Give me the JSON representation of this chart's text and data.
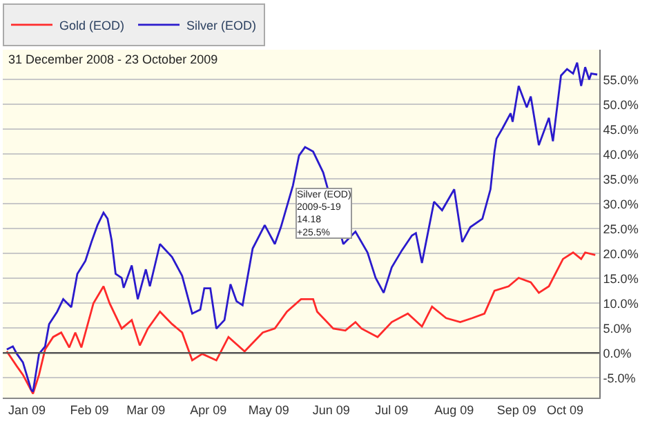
{
  "chart_data": {
    "type": "line",
    "title": "31 December 2008 - 23 October 2009",
    "annotations": [
      "Silver (EOD)\n2009-5-19\n14.18\n+25.5%"
    ],
    "series": [
      {
        "name": "Gold (EOD)",
        "color": "#ff2a2a",
        "x": [
          "2009-01-02",
          "2009-01-07",
          "2009-01-10",
          "2009-01-15",
          "2009-01-18",
          "2009-01-21",
          "2009-01-25",
          "2009-01-29",
          "2009-02-02",
          "2009-02-05",
          "2009-02-08",
          "2009-02-14",
          "2009-02-19",
          "2009-02-22",
          "2009-02-28",
          "2009-03-05",
          "2009-03-09",
          "2009-03-13",
          "2009-03-19",
          "2009-03-25",
          "2009-03-30",
          "2009-04-04",
          "2009-04-09",
          "2009-04-16",
          "2009-04-22",
          "2009-04-30",
          "2009-05-09",
          "2009-05-15",
          "2009-05-21",
          "2009-05-28",
          "2009-06-03",
          "2009-06-05",
          "2009-06-13",
          "2009-06-19",
          "2009-06-24",
          "2009-06-27",
          "2009-07-05",
          "2009-07-12",
          "2009-07-20",
          "2009-07-27",
          "2009-08-01",
          "2009-08-08",
          "2009-08-15",
          "2009-08-21",
          "2009-08-27",
          "2009-09-01",
          "2009-09-08",
          "2009-09-13",
          "2009-09-19",
          "2009-09-23",
          "2009-09-28",
          "2009-10-05",
          "2009-10-10",
          "2009-10-14",
          "2009-10-16",
          "2009-10-21"
        ],
        "values": [
          0.3,
          -2.7,
          -4.4,
          -8.2,
          -4.4,
          0.7,
          3.2,
          4.1,
          1.1,
          4.1,
          1.1,
          10.0,
          13.4,
          10.0,
          4.9,
          6.6,
          1.5,
          4.9,
          8.3,
          5.8,
          4.1,
          -1.5,
          -0.2,
          -1.5,
          3.2,
          0.3,
          4.1,
          4.9,
          8.3,
          10.8,
          10.8,
          8.3,
          4.9,
          4.5,
          6.2,
          4.9,
          3.2,
          6.2,
          7.9,
          5.3,
          9.3,
          7.0,
          6.2,
          7.0,
          7.9,
          12.5,
          13.4,
          15.1,
          14.2,
          12.1,
          13.4,
          18.9,
          20.2,
          18.9,
          20.2,
          19.7
        ]
      },
      {
        "name": "Silver (EOD)",
        "color": "#2a1acc",
        "x": [
          "2009-01-02",
          "2009-01-05",
          "2009-01-07",
          "2009-01-10",
          "2009-01-14",
          "2009-01-15",
          "2009-01-18",
          "2009-01-21",
          "2009-01-23",
          "2009-01-27",
          "2009-01-30",
          "2009-02-03",
          "2009-02-06",
          "2009-02-10",
          "2009-02-13",
          "2009-02-16",
          "2009-02-19",
          "2009-02-21",
          "2009-02-23",
          "2009-02-25",
          "2009-02-28",
          "2009-03-01",
          "2009-03-05",
          "2009-03-08",
          "2009-03-12",
          "2009-03-14",
          "2009-03-19",
          "2009-03-25",
          "2009-03-30",
          "2009-04-04",
          "2009-04-08",
          "2009-04-10",
          "2009-04-13",
          "2009-04-16",
          "2009-04-20",
          "2009-04-23",
          "2009-04-26",
          "2009-04-29",
          "2009-05-04",
          "2009-05-10",
          "2009-05-15",
          "2009-05-18",
          "2009-05-24",
          "2009-05-27",
          "2009-05-30",
          "2009-06-03",
          "2009-06-08",
          "2009-06-18",
          "2009-06-24",
          "2009-06-30",
          "2009-07-04",
          "2009-07-08",
          "2009-07-12",
          "2009-07-17",
          "2009-07-22",
          "2009-07-24",
          "2009-07-27",
          "2009-08-02",
          "2009-08-06",
          "2009-08-12",
          "2009-08-16",
          "2009-08-20",
          "2009-08-26",
          "2009-08-30",
          "2009-09-01",
          "2009-09-02",
          "2009-09-05",
          "2009-09-09",
          "2009-09-10",
          "2009-09-13",
          "2009-09-17",
          "2009-09-19",
          "2009-09-23",
          "2009-09-28",
          "2009-09-30",
          "2009-10-04",
          "2009-10-07",
          "2009-10-10",
          "2009-10-12",
          "2009-10-14",
          "2009-10-16",
          "2009-10-18",
          "2009-10-19",
          "2009-10-22"
        ],
        "values": [
          0.7,
          1.3,
          -0.2,
          -1.9,
          -7.3,
          -7.8,
          -0.2,
          1.3,
          5.8,
          8.3,
          10.8,
          9.2,
          15.9,
          18.5,
          22.3,
          25.7,
          28.2,
          27.0,
          22.7,
          15.9,
          15.1,
          13.1,
          17.6,
          10.8,
          16.8,
          13.4,
          21.9,
          19.3,
          15.5,
          7.9,
          8.7,
          13.0,
          13.0,
          4.9,
          6.6,
          13.8,
          10.4,
          9.6,
          21.0,
          25.7,
          21.9,
          25.3,
          33.7,
          39.7,
          41.4,
          40.5,
          36.3,
          21.9,
          24.4,
          20.2,
          15.1,
          12.1,
          17.2,
          20.6,
          23.6,
          24.1,
          18.1,
          30.4,
          28.7,
          32.9,
          22.3,
          25.3,
          27.0,
          32.9,
          40.5,
          43.1,
          45.2,
          48.2,
          46.5,
          53.7,
          49.4,
          51.6,
          41.8,
          47.3,
          42.6,
          55.8,
          57.1,
          56.2,
          58.4,
          53.7,
          57.5,
          55.0,
          56.2,
          56.0
        ]
      }
    ],
    "xlim": [
      "2008-12-31",
      "2009-10-23"
    ],
    "xticks": [
      {
        "value": "2009-01-12",
        "label": "Jan 09"
      },
      {
        "value": "2009-02-12",
        "label": "Feb 09"
      },
      {
        "value": "2009-03-12",
        "label": "Mar 09"
      },
      {
        "value": "2009-04-12",
        "label": "Apr 09"
      },
      {
        "value": "2009-05-12",
        "label": "May 09"
      },
      {
        "value": "2009-06-12",
        "label": "Jun 09"
      },
      {
        "value": "2009-07-12",
        "label": "Jul 09"
      },
      {
        "value": "2009-08-12",
        "label": "Aug 09"
      },
      {
        "value": "2009-09-12",
        "label": "Sep 09"
      },
      {
        "value": "2009-10-06",
        "label": "Oct 09"
      }
    ],
    "ylim": [
      -9,
      61
    ],
    "yticks": [
      {
        "value": -5,
        "label": "-5.0%"
      },
      {
        "value": 0,
        "label": "0.0%"
      },
      {
        "value": 5,
        "label": "5.0%"
      },
      {
        "value": 10,
        "label": "10.0%"
      },
      {
        "value": 15,
        "label": "15.0%"
      },
      {
        "value": 20,
        "label": "20.0%"
      },
      {
        "value": 25,
        "label": "25.0%"
      },
      {
        "value": 30,
        "label": "30.0%"
      },
      {
        "value": 35,
        "label": "35.0%"
      },
      {
        "value": 40,
        "label": "40.0%"
      },
      {
        "value": 45,
        "label": "45.0%"
      },
      {
        "value": 50,
        "label": "50.0%"
      },
      {
        "value": 55,
        "label": "55.0%"
      }
    ],
    "ref_lines": [
      {
        "axis": "y",
        "value": 0,
        "color": "#555555"
      }
    ],
    "grid": "y",
    "legend": "top left",
    "marker": "none",
    "line_style": "solid"
  }
}
